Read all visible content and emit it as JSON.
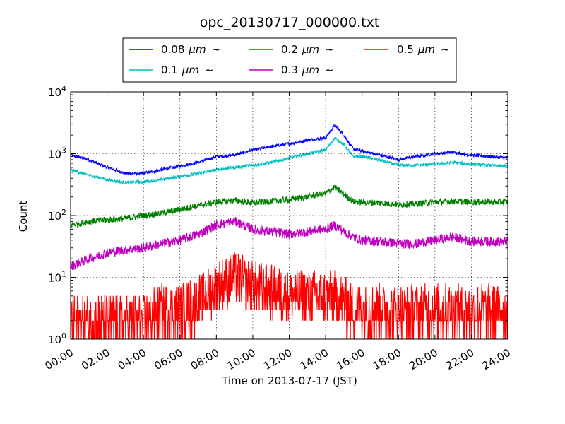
{
  "chart_data": {
    "type": "line",
    "title": "opc_20130717_000000.txt",
    "xlabel": "Time on 2013-07-17 (JST)",
    "ylabel": "Count",
    "y_scale": "log",
    "ylim": [
      1,
      10000
    ],
    "y_ticks": [
      {
        "base": "10",
        "exp": "0"
      },
      {
        "base": "10",
        "exp": "1"
      },
      {
        "base": "10",
        "exp": "2"
      },
      {
        "base": "10",
        "exp": "3"
      },
      {
        "base": "10",
        "exp": "4"
      }
    ],
    "xlim": [
      "00:00",
      "24:00"
    ],
    "x_ticks": [
      "00:00",
      "02:00",
      "04:00",
      "06:00",
      "08:00",
      "10:00",
      "12:00",
      "14:00",
      "16:00",
      "18:00",
      "20:00",
      "22:00",
      "24:00"
    ],
    "grid": true,
    "legend_position": "top-center",
    "x": [
      "00:00",
      "01:00",
      "02:00",
      "03:00",
      "04:00",
      "05:00",
      "06:00",
      "07:00",
      "08:00",
      "09:00",
      "10:00",
      "11:00",
      "12:00",
      "13:00",
      "14:00",
      "14:30",
      "15:00",
      "15:30",
      "16:00",
      "17:00",
      "18:00",
      "19:00",
      "20:00",
      "21:00",
      "22:00",
      "23:00",
      "24:00"
    ],
    "series": [
      {
        "name": "0.08",
        "unit": "μm",
        "suffix": "~",
        "color": "#0000ff",
        "values": [
          950,
          800,
          600,
          480,
          480,
          550,
          630,
          720,
          900,
          950,
          1150,
          1300,
          1450,
          1650,
          1800,
          2900,
          2000,
          1200,
          1100,
          950,
          800,
          900,
          1000,
          1050,
          950,
          900,
          850
        ]
      },
      {
        "name": "0.1",
        "unit": "μm",
        "suffix": "~",
        "color": "#00bfbf",
        "values": [
          550,
          450,
          380,
          340,
          350,
          380,
          430,
          480,
          550,
          600,
          650,
          720,
          850,
          1000,
          1150,
          1800,
          1400,
          900,
          900,
          780,
          650,
          650,
          680,
          720,
          680,
          650,
          620
        ]
      },
      {
        "name": "0.2",
        "unit": "μm",
        "suffix": "~",
        "color": "#008000",
        "values": [
          70,
          80,
          85,
          90,
          100,
          110,
          125,
          145,
          165,
          175,
          160,
          170,
          180,
          200,
          230,
          290,
          220,
          170,
          165,
          160,
          150,
          155,
          165,
          170,
          165,
          165,
          165
        ]
      },
      {
        "name": "0.3",
        "unit": "μm",
        "suffix": "~",
        "color": "#bf00bf",
        "values": [
          15,
          20,
          25,
          28,
          30,
          35,
          40,
          50,
          70,
          80,
          60,
          55,
          50,
          55,
          60,
          70,
          55,
          45,
          40,
          38,
          35,
          35,
          40,
          45,
          38,
          38,
          38
        ]
      },
      {
        "name": "0.5",
        "unit": "μm",
        "suffix": "~",
        "color": "#ff0000",
        "values": [
          2,
          2,
          2,
          2,
          2,
          3,
          3,
          4,
          7,
          10,
          7,
          6,
          5,
          5,
          5,
          5,
          4,
          3,
          3,
          3,
          3,
          3,
          3,
          3,
          3,
          3,
          3
        ]
      }
    ]
  }
}
